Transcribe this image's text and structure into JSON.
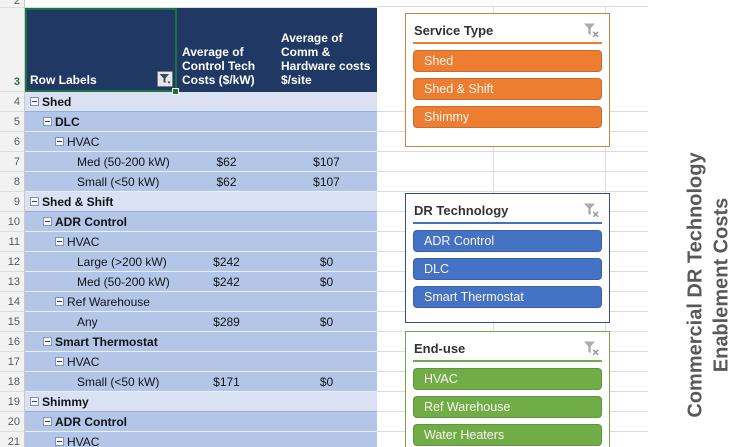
{
  "sheet": {
    "visible_partial_row_number": "2",
    "header_row_number": "3",
    "header": {
      "row_label": "Row Labels",
      "col1_lines": [
        "Average of",
        "Control Tech",
        "Costs ($/kW)"
      ],
      "col2_lines": [
        "Average of",
        "Comm &",
        "Hardware costs",
        "$/site"
      ]
    },
    "rows": [
      {
        "n": 4,
        "label": "Shed",
        "level": 0,
        "v1": "",
        "v2": ""
      },
      {
        "n": 5,
        "label": "DLC",
        "level": 1,
        "v1": "",
        "v2": ""
      },
      {
        "n": 6,
        "label": "HVAC",
        "level": 2,
        "v1": "",
        "v2": ""
      },
      {
        "n": 7,
        "label": "Med (50-200 kW)",
        "level": 3,
        "v1": "$62",
        "v2": "$107"
      },
      {
        "n": 8,
        "label": "Small (<50 kW)",
        "level": 3,
        "v1": "$62",
        "v2": "$107"
      },
      {
        "n": 9,
        "label": "Shed & Shift",
        "level": 0,
        "v1": "",
        "v2": ""
      },
      {
        "n": 10,
        "label": "ADR Control",
        "level": 1,
        "v1": "",
        "v2": ""
      },
      {
        "n": 11,
        "label": "HVAC",
        "level": 2,
        "v1": "",
        "v2": ""
      },
      {
        "n": 12,
        "label": "Large (>200 kW)",
        "level": 3,
        "v1": "$242",
        "v2": "$0"
      },
      {
        "n": 13,
        "label": "Med (50-200 kW)",
        "level": 3,
        "v1": "$242",
        "v2": "$0"
      },
      {
        "n": 14,
        "label": "Ref Warehouse",
        "level": 2,
        "v1": "",
        "v2": ""
      },
      {
        "n": 15,
        "label": "Any",
        "level": 3,
        "v1": "$289",
        "v2": "$0"
      },
      {
        "n": 16,
        "label": "Smart Thermostat",
        "level": 1,
        "v1": "",
        "v2": ""
      },
      {
        "n": 17,
        "label": "HVAC",
        "level": 2,
        "v1": "",
        "v2": ""
      },
      {
        "n": 18,
        "label": "Small (<50 kW)",
        "level": 3,
        "v1": "$171",
        "v2": "$0"
      },
      {
        "n": 19,
        "label": "Shimmy",
        "level": 0,
        "v1": "",
        "v2": ""
      },
      {
        "n": 20,
        "label": "ADR Control",
        "level": 1,
        "v1": "",
        "v2": ""
      },
      {
        "n": 21,
        "label": "HVAC",
        "level": 2,
        "v1": "",
        "v2": ""
      }
    ]
  },
  "slicers": [
    {
      "title": "Service Type",
      "accent": "#ED7D31",
      "border": "#C8873E",
      "items": [
        "Shed",
        "Shed & Shift",
        "Shimmy"
      ]
    },
    {
      "title": "DR Technology",
      "accent": "#4472C4",
      "border": "#34507E",
      "items": [
        "ADR Control",
        "DLC",
        "Smart Thermostat"
      ]
    },
    {
      "title": "End-use",
      "accent": "#70AD47",
      "border": "#73A648",
      "items": [
        "HVAC",
        "Ref Warehouse",
        "Water Heaters"
      ]
    }
  ],
  "vertical_title": {
    "lines": [
      "Commercial DR Technology",
      "Enablement Costs"
    ]
  },
  "colors": {
    "header_bg": "#1F3864",
    "row_light": "#D9E1F2",
    "row_dark": "#B4C6E7",
    "selection_green": "#1E7145",
    "gridline": "#D6DCE4",
    "title_text": "#595959"
  }
}
